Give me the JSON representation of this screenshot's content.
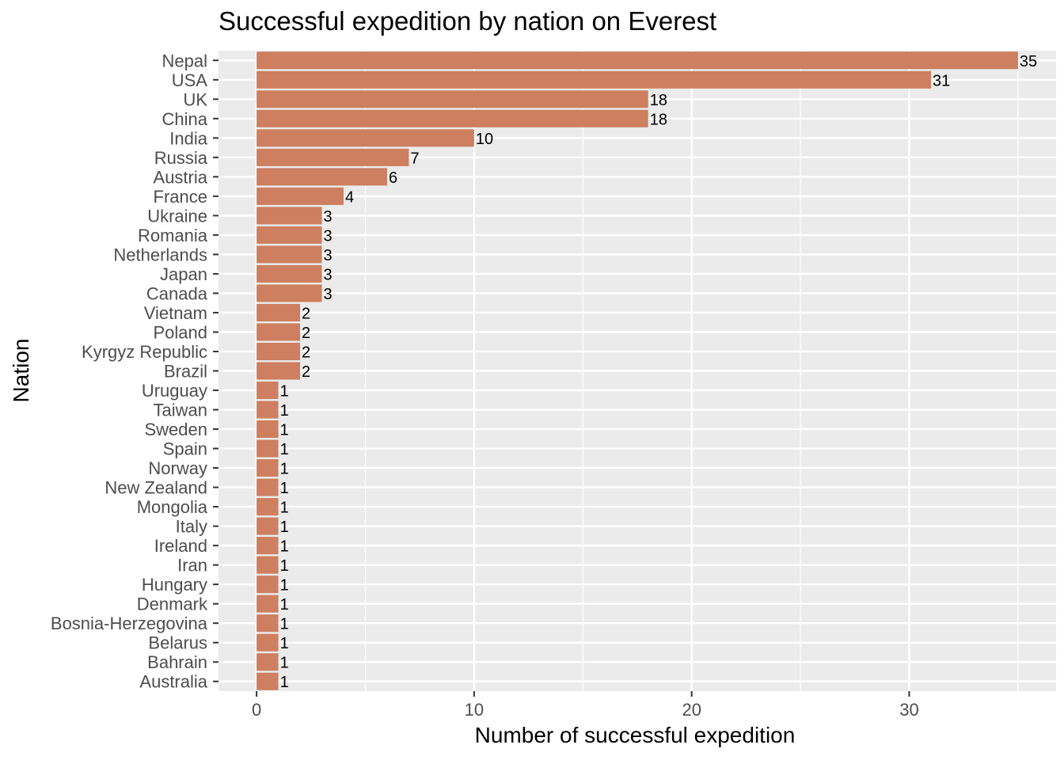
{
  "chart_data": {
    "type": "bar",
    "orientation": "horizontal",
    "title": "Successful expedition by nation on Everest",
    "xlabel": "Number of successful expedition",
    "ylabel": "Nation",
    "bar_color": "#CD7F5F",
    "panel_color": "#EBEBEB",
    "grid": true,
    "legend": "none",
    "xlim": [
      -1.75,
      36.75
    ],
    "xticks": [
      0,
      10,
      20,
      30
    ],
    "categories": [
      "Nepal",
      "USA",
      "UK",
      "China",
      "India",
      "Russia",
      "Austria",
      "France",
      "Ukraine",
      "Romania",
      "Netherlands",
      "Japan",
      "Canada",
      "Vietnam",
      "Poland",
      "Kyrgyz Republic",
      "Brazil",
      "Uruguay",
      "Taiwan",
      "Sweden",
      "Spain",
      "Norway",
      "New Zealand",
      "Mongolia",
      "Italy",
      "Ireland",
      "Iran",
      "Hungary",
      "Denmark",
      "Bosnia-Herzegovina",
      "Belarus",
      "Bahrain",
      "Australia"
    ],
    "values": [
      35,
      31,
      18,
      18,
      10,
      7,
      6,
      4,
      3,
      3,
      3,
      3,
      3,
      2,
      2,
      2,
      2,
      1,
      1,
      1,
      1,
      1,
      1,
      1,
      1,
      1,
      1,
      1,
      1,
      1,
      1,
      1,
      1
    ]
  }
}
